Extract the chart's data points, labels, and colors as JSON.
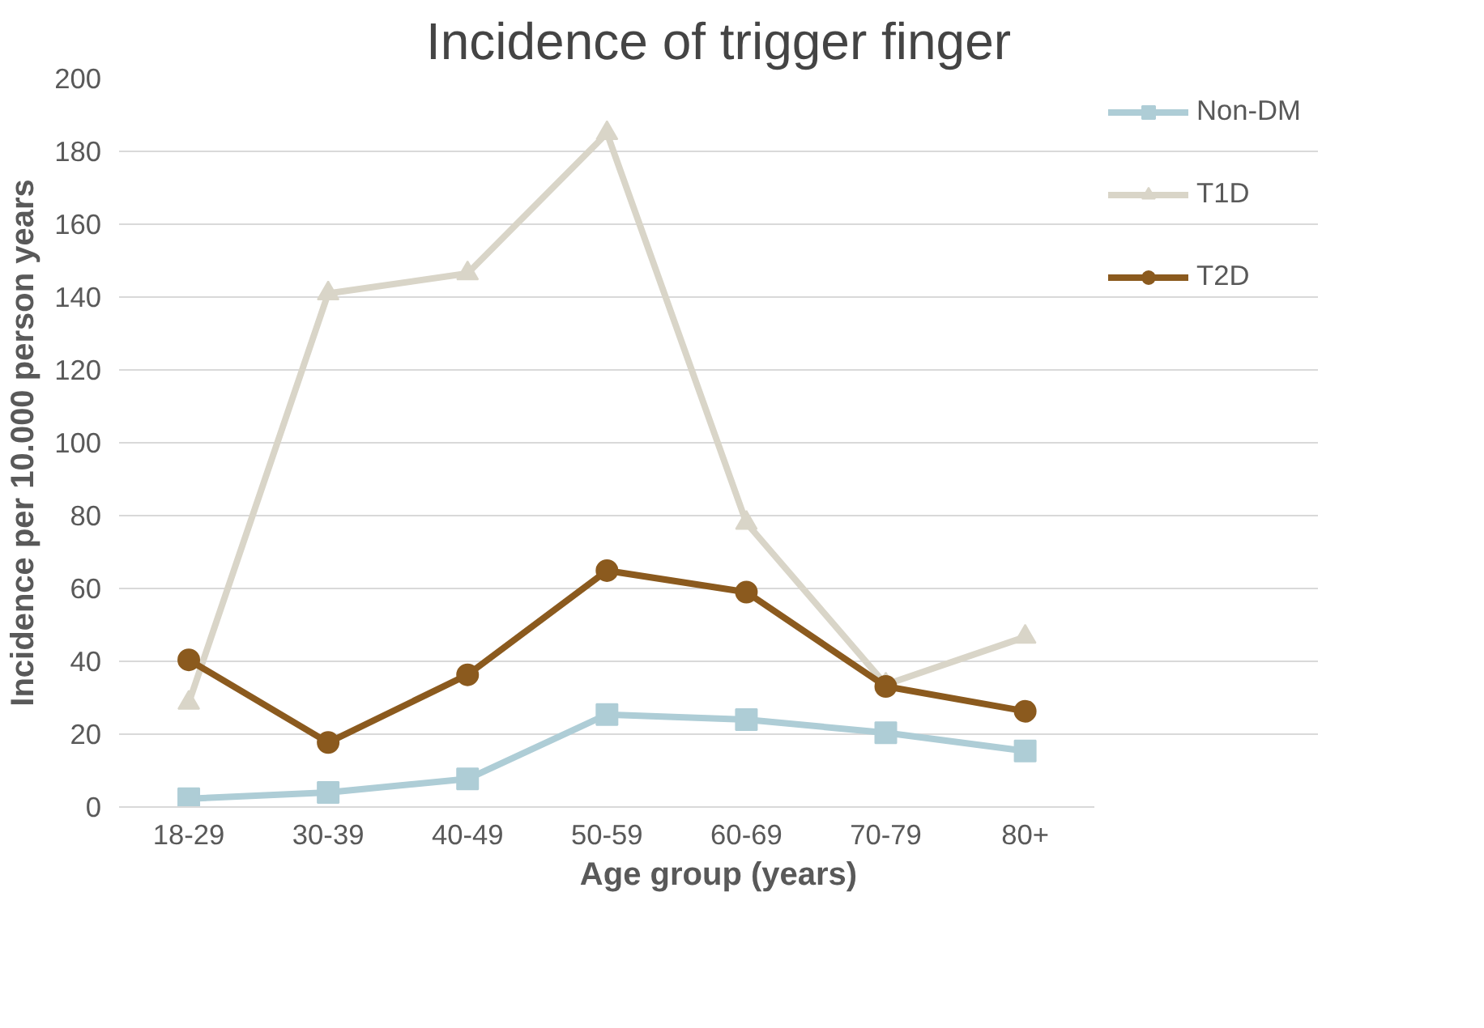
{
  "chart_data": {
    "type": "line",
    "title": "Incidence of trigger finger",
    "xlabel": "Age group (years)",
    "ylabel": "Incidence per 10.000 person years",
    "categories": [
      "18-29",
      "30-39",
      "40-49",
      "50-59",
      "60-69",
      "70-79",
      "80+"
    ],
    "series": [
      {
        "name": "Non-DM",
        "color": "#aecdd6",
        "marker": "square",
        "values": [
          2.3,
          4,
          7.7,
          25.4,
          24,
          20.4,
          15.4
        ]
      },
      {
        "name": "T1D",
        "color": "#d9d5c8",
        "marker": "triangle",
        "values": [
          28.6,
          141,
          146.5,
          185,
          78,
          33.6,
          46.7
        ]
      },
      {
        "name": "T2D",
        "color": "#8b5a1e",
        "marker": "circle",
        "values": [
          40.4,
          17.7,
          36.3,
          64.9,
          59,
          33.1,
          26.3
        ]
      }
    ],
    "ylim": [
      0,
      200
    ],
    "yticks": [
      0,
      20,
      40,
      60,
      80,
      100,
      120,
      140,
      160,
      180,
      200
    ],
    "grid": "y",
    "legend": "right",
    "line_style": "solid"
  }
}
